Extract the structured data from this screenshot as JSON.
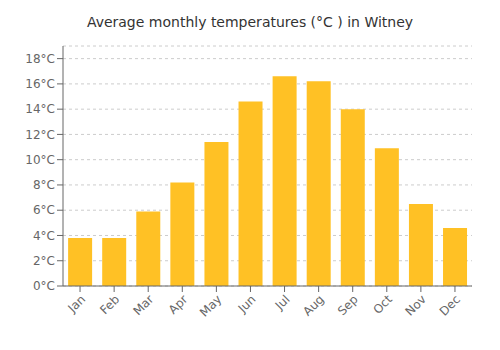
{
  "chart_data": {
    "type": "bar",
    "title": "Average monthly temperatures (°C ) in Witney",
    "categories": [
      "Jan",
      "Feb",
      "Mar",
      "Apr",
      "May",
      "Jun",
      "Jul",
      "Aug",
      "Sep",
      "Oct",
      "Nov",
      "Dec"
    ],
    "values": [
      3.8,
      3.8,
      5.9,
      8.2,
      11.4,
      14.6,
      16.6,
      16.2,
      14.0,
      10.9,
      6.5,
      4.6
    ],
    "color": "#FFC125",
    "ylim": [
      0,
      19
    ],
    "yticks": [
      {
        "value": 0,
        "label": "0°C"
      },
      {
        "value": 2,
        "label": "2°C"
      },
      {
        "value": 4,
        "label": "4°C"
      },
      {
        "value": 6,
        "label": "6°C"
      },
      {
        "value": 8,
        "label": "8°C"
      },
      {
        "value": 10,
        "label": "10°C"
      },
      {
        "value": 12,
        "label": "12°C"
      },
      {
        "value": 14,
        "label": "14°C"
      },
      {
        "value": 16,
        "label": "16°C"
      },
      {
        "value": 18,
        "label": "18°C"
      }
    ],
    "grid": true
  }
}
